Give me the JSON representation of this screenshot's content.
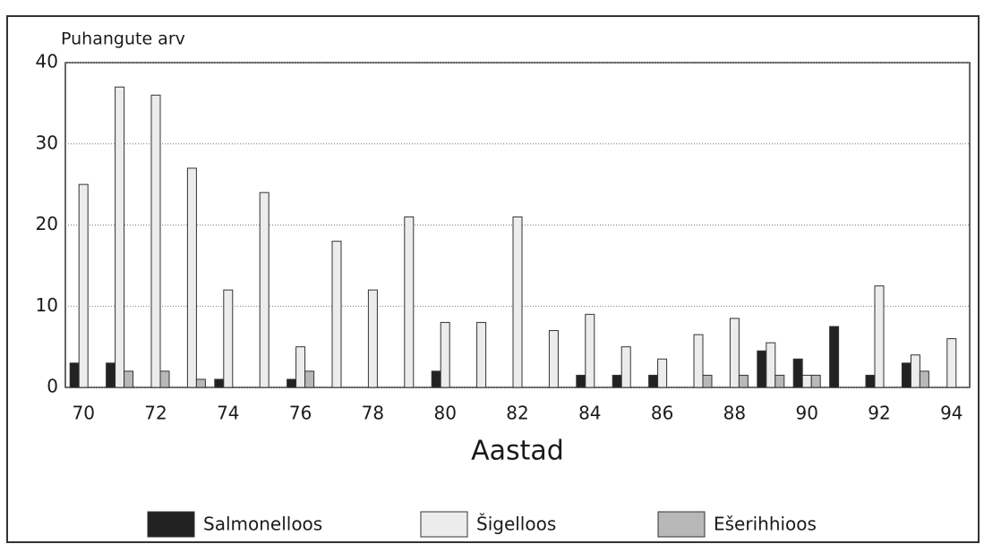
{
  "chart_data": {
    "type": "bar",
    "title": "Puhangute arv",
    "x_label": "Aastad",
    "categories": [
      "70",
      null,
      "72",
      null,
      "74",
      null,
      "76",
      null,
      "78",
      null,
      "80",
      null,
      "82",
      null,
      "84",
      null,
      "86",
      null,
      "88",
      null,
      "90",
      null,
      "92",
      null,
      "94"
    ],
    "series": [
      {
        "name": "Salmonelloos",
        "color": "#222222",
        "values": [
          3,
          3,
          0,
          0,
          1,
          0,
          1,
          0,
          0,
          0,
          2,
          0,
          0,
          0,
          1.5,
          1.5,
          1.5,
          0,
          0,
          4.5,
          3.5,
          7.5,
          1.5,
          3,
          0
        ]
      },
      {
        "name": "Šigelloos",
        "color": "#ececec",
        "values": [
          25,
          37,
          36,
          27,
          12,
          24,
          5,
          18,
          12,
          21,
          8,
          8,
          21,
          7,
          9,
          5,
          3.5,
          6.5,
          8.5,
          5.5,
          1.5,
          0,
          12.5,
          4,
          6
        ]
      },
      {
        "name": "Ešerihhioos",
        "color": "#b8b8b8",
        "values": [
          0,
          2,
          2,
          1,
          0,
          0,
          2,
          0,
          0,
          0,
          0,
          0,
          0,
          0,
          0,
          0,
          0,
          1.5,
          1.5,
          1.5,
          1.5,
          0,
          0,
          2,
          0
        ]
      }
    ],
    "ylim": [
      0,
      40
    ],
    "yticks": [
      0,
      10,
      20,
      30,
      40
    ],
    "grid": true,
    "legend": "bottom"
  }
}
